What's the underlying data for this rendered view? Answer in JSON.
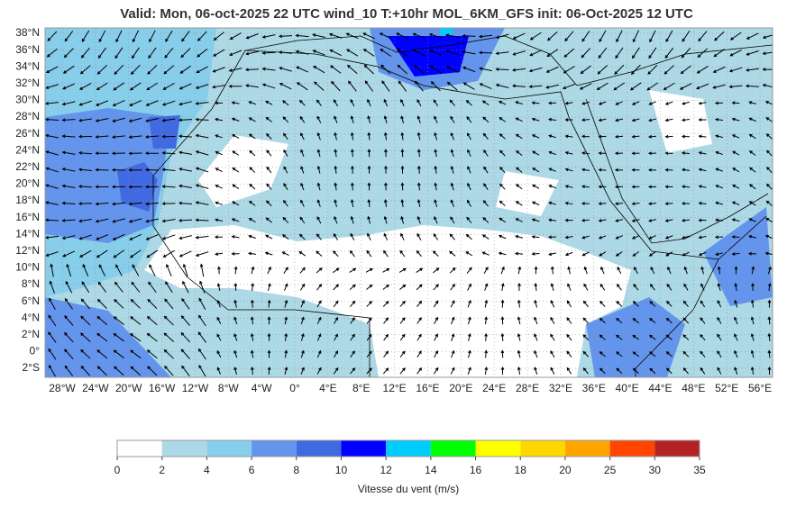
{
  "title": "Valid: Mon, 06-oct-2025   22 UTC   wind_10   T:+10hr   MOL_6KM_GFS   init: 06-Oct-2025    12 UTC",
  "lat_labels": [
    "38°N",
    "36°N",
    "34°N",
    "32°N",
    "30°N",
    "28°N",
    "26°N",
    "24°N",
    "22°N",
    "20°N",
    "18°N",
    "16°N",
    "14°N",
    "12°N",
    "10°N",
    "8°N",
    "6°N",
    "4°N",
    "2°N",
    "0°",
    "2°S"
  ],
  "lon_labels": [
    "28°W",
    "24°W",
    "20°W",
    "16°W",
    "12°W",
    "8°W",
    "4°W",
    "0°",
    "4°E",
    "8°E",
    "12°E",
    "16°E",
    "20°E",
    "24°E",
    "28°E",
    "32°E",
    "36°E",
    "40°E",
    "44°E",
    "48°E",
    "52°E",
    "56°E"
  ],
  "colorbar": {
    "ticks": [
      0,
      2,
      4,
      6,
      8,
      10,
      12,
      14,
      16,
      18,
      20,
      25,
      30,
      35
    ],
    "colors": [
      "#ffffff",
      "#add8e6",
      "#87ceeb",
      "#6495ed",
      "#4169e1",
      "#0000ff",
      "#00ccff",
      "#00ff00",
      "#ffff00",
      "#ffd700",
      "#ffa500",
      "#ff4500",
      "#b22222"
    ],
    "label": "Vitesse du vent (m/s)"
  }
}
